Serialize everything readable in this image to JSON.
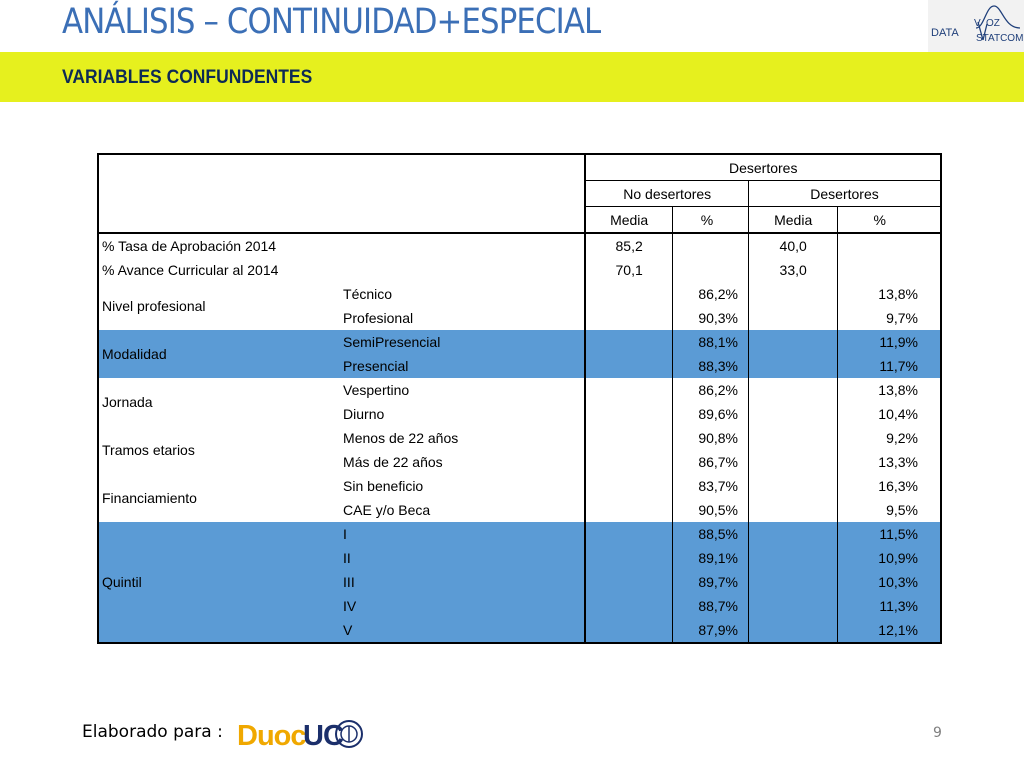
{
  "slide": {
    "title": "ANÁLISIS – CONTINUIDAD+ESPECIAL",
    "subtitle": "VARIABLES CONFUNDENTES",
    "footer_label": "Elaborado para :",
    "page_number": "9"
  },
  "logos": {
    "top_right": {
      "left_text": "DATA",
      "v_text": "V",
      "oz_text": "OZ",
      "right_text": "STATCOM"
    },
    "footer": {
      "brand": "DuocUC"
    }
  },
  "colors": {
    "title": "#3b6fb6",
    "band": "#e6f01e",
    "subtitle": "#0d2a55",
    "highlight_row": "#5b9bd5"
  },
  "table": {
    "group_header": "Desertores",
    "sub_headers": [
      "No desertores",
      "Desertores"
    ],
    "col_headers": [
      "Media",
      "%",
      "Media",
      "%"
    ],
    "top_rows": [
      {
        "label": "% Tasa de Aprobación 2014",
        "media_no": "85,2",
        "media_si": "40,0"
      },
      {
        "label": "% Avance Curricular al 2014",
        "media_no": "70,1",
        "media_si": "33,0"
      }
    ],
    "groups": [
      {
        "name": "Nivel profesional",
        "highlight": false,
        "rows": [
          {
            "sub": "Técnico",
            "pct_no": "86,2%",
            "pct_si": "13,8%"
          },
          {
            "sub": "Profesional",
            "pct_no": "90,3%",
            "pct_si": "9,7%"
          }
        ]
      },
      {
        "name": "Modalidad",
        "highlight": true,
        "rows": [
          {
            "sub": "SemiPresencial",
            "pct_no": "88,1%",
            "pct_si": "11,9%"
          },
          {
            "sub": "Presencial",
            "pct_no": "88,3%",
            "pct_si": "11,7%"
          }
        ]
      },
      {
        "name": "Jornada",
        "highlight": false,
        "rows": [
          {
            "sub": "Vespertino",
            "pct_no": "86,2%",
            "pct_si": "13,8%"
          },
          {
            "sub": "Diurno",
            "pct_no": "89,6%",
            "pct_si": "10,4%"
          }
        ]
      },
      {
        "name": "Tramos etarios",
        "highlight": false,
        "rows": [
          {
            "sub": "Menos de 22 años",
            "pct_no": "90,8%",
            "pct_si": "9,2%"
          },
          {
            "sub": "Más de 22 años",
            "pct_no": "86,7%",
            "pct_si": "13,3%"
          }
        ]
      },
      {
        "name": "Financiamiento",
        "highlight": false,
        "rows": [
          {
            "sub": "Sin beneficio",
            "pct_no": "83,7%",
            "pct_si": "16,3%"
          },
          {
            "sub": "CAE y/o Beca",
            "pct_no": "90,5%",
            "pct_si": "9,5%"
          }
        ]
      },
      {
        "name": "Quintil",
        "highlight": true,
        "rows": [
          {
            "sub": "I",
            "pct_no": "88,5%",
            "pct_si": "11,5%"
          },
          {
            "sub": "II",
            "pct_no": "89,1%",
            "pct_si": "10,9%"
          },
          {
            "sub": "III",
            "pct_no": "89,7%",
            "pct_si": "10,3%"
          },
          {
            "sub": "IV",
            "pct_no": "88,7%",
            "pct_si": "11,3%"
          },
          {
            "sub": "V",
            "pct_no": "87,9%",
            "pct_si": "12,1%"
          }
        ]
      }
    ]
  }
}
